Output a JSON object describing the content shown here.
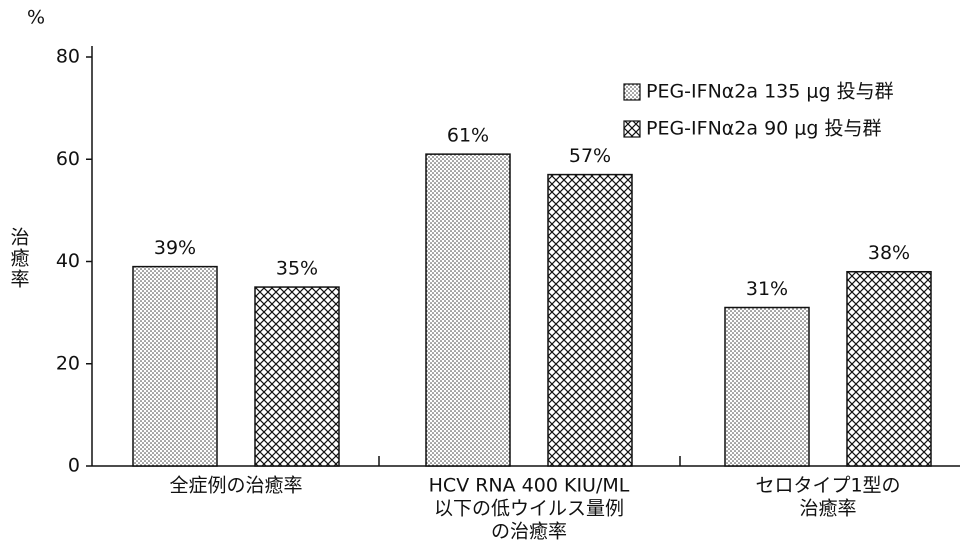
{
  "chart_data": {
    "type": "bar",
    "y_unit": "%",
    "y_label": [
      "治",
      "癒",
      "率"
    ],
    "categories": [
      [
        "全症例の治癒率"
      ],
      [
        "HCV RNA 400 KIU/ML",
        "以下の低ウイルス量例",
        "の治癒率"
      ],
      [
        "セロタイプ1型の",
        "治癒率"
      ]
    ],
    "series": [
      {
        "name": "PEG-IFNα2a 135 μg 投与群",
        "color": "#ffffff",
        "pattern": "dots",
        "values": [
          39,
          61,
          31
        ],
        "value_labels": [
          "39%",
          "61%",
          "31%"
        ]
      },
      {
        "name": "PEG-IFNα2a 90 μg 投与群",
        "color": "#ffffff",
        "pattern": "crosshatch",
        "values": [
          35,
          57,
          38
        ],
        "value_labels": [
          "35%",
          "57%",
          "38%"
        ]
      }
    ],
    "ylim": [
      0,
      80
    ],
    "yticks": [
      0,
      20,
      40,
      60,
      80
    ],
    "grid": false,
    "legend": "top-right"
  }
}
